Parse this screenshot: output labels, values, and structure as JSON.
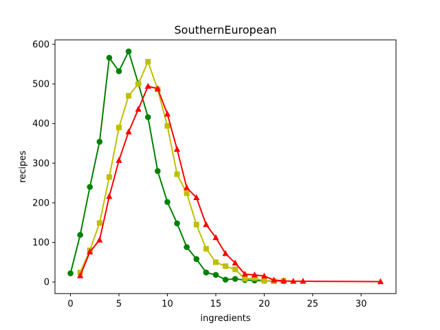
{
  "chart_data": {
    "type": "line",
    "title": "SouthernEuropean",
    "xlabel": "ingredients",
    "ylabel": "recipes",
    "xlim": [
      -1.6,
      33.6
    ],
    "ylim": [
      -29.1,
      611.1
    ],
    "xticks": [
      0,
      5,
      10,
      15,
      20,
      25,
      30
    ],
    "yticks": [
      0,
      100,
      200,
      300,
      400,
      500,
      600
    ],
    "grid": false,
    "legend": "none",
    "series": [
      {
        "color": "#008000",
        "marker": "circle",
        "x": [
          0,
          1,
          2,
          3,
          4,
          5,
          6,
          7,
          8,
          9,
          10,
          11,
          12,
          13,
          14,
          15,
          16,
          17,
          18,
          19,
          20,
          22
        ],
        "values": [
          22,
          119,
          240,
          354,
          566,
          532,
          582,
          501,
          416,
          280,
          202,
          148,
          88,
          58,
          24,
          18,
          6,
          8,
          5,
          4,
          3,
          2
        ]
      },
      {
        "color": "#bfbf00",
        "marker": "square",
        "x": [
          1,
          2,
          3,
          4,
          5,
          6,
          7,
          8,
          9,
          10,
          11,
          12,
          13,
          14,
          15,
          16,
          17,
          18,
          19,
          20,
          21,
          22
        ],
        "values": [
          24,
          80,
          149,
          265,
          390,
          470,
          500,
          556,
          486,
          394,
          272,
          224,
          145,
          84,
          50,
          40,
          32,
          8,
          10,
          3,
          2,
          3
        ]
      },
      {
        "color": "#ff0000",
        "marker": "triangle",
        "x": [
          1,
          2,
          3,
          4,
          5,
          6,
          7,
          8,
          9,
          10,
          11,
          12,
          13,
          14,
          15,
          16,
          17,
          18,
          19,
          20,
          21,
          22,
          23,
          24,
          32
        ],
        "values": [
          16,
          76,
          106,
          216,
          307,
          379,
          436,
          494,
          488,
          424,
          335,
          238,
          213,
          145,
          112,
          72,
          48,
          20,
          18,
          15,
          5,
          3,
          2,
          2,
          1
        ]
      }
    ]
  }
}
